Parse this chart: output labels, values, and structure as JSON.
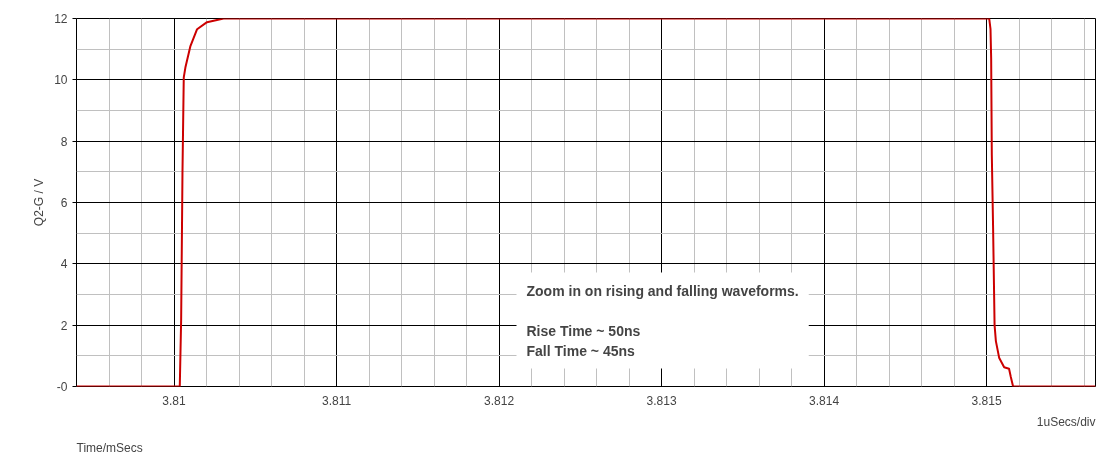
{
  "chart_data": {
    "type": "line",
    "xlabel": "Time/mSecs",
    "ylabel": "Q2-G / V",
    "x": [
      3.8094,
      3.8100355,
      3.810044,
      3.810052,
      3.81006,
      3.81007,
      3.810101,
      3.810142,
      3.810203,
      3.810305,
      3.815016,
      3.815024,
      3.815028,
      3.815032,
      3.81504,
      3.815049,
      3.815057,
      3.815077,
      3.815108,
      3.815138,
      3.815149,
      3.815163,
      3.81567
    ],
    "series": [
      {
        "color": "#cc0000",
        "values": [
          0,
          0,
          2.2,
          6.93,
          10.08,
          10.4,
          11.1,
          11.65,
          11.88,
          12,
          12,
          11.65,
          10.7,
          7.56,
          5.14,
          2.0,
          1.48,
          0.94,
          0.63,
          0.58,
          0.31,
          0,
          0
        ]
      }
    ],
    "xlim": [
      3.8094,
      3.81567
    ],
    "xticks": [
      3.81,
      3.811,
      3.812,
      3.813,
      3.814,
      3.815
    ],
    "ylim": [
      0,
      12
    ],
    "yticks": [
      {
        "value": 0,
        "label": "-0"
      },
      2,
      4,
      6,
      8,
      10,
      12
    ],
    "grid": true,
    "marker": "none",
    "line_style": "solid",
    "annotations": [
      "Zoom in on rising and falling waveforms.\n\nRise Time ~ 50ns\nFall Time ~ 45ns",
      "1uSecs/div"
    ]
  }
}
